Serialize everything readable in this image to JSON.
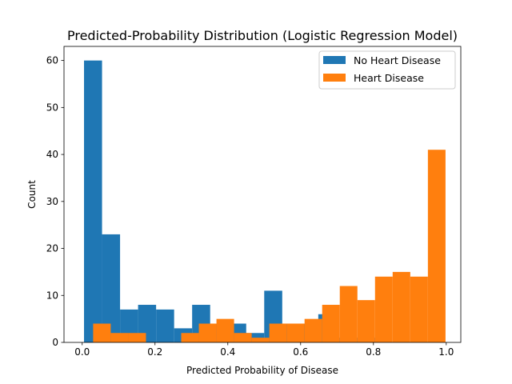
{
  "chart_data": {
    "type": "bar",
    "title": "Predicted-Probability Distribution (Logistic Regression Model)",
    "xlabel": "Predicted Probability of Disease",
    "ylabel": "Count",
    "xlim": [
      -0.05,
      1.04
    ],
    "ylim": [
      0,
      63
    ],
    "xticks": [
      0.0,
      0.2,
      0.4,
      0.6,
      0.8,
      1.0
    ],
    "xtick_labels": [
      "0.0",
      "0.2",
      "0.4",
      "0.6",
      "0.8",
      "1.0"
    ],
    "yticks": [
      0,
      10,
      20,
      30,
      40,
      50,
      60
    ],
    "ytick_labels": [
      "0",
      "10",
      "20",
      "30",
      "40",
      "50",
      "60"
    ],
    "legend_position": "top-right",
    "grid": false,
    "series": [
      {
        "name": "No Heart Disease",
        "color": "#1f77b4",
        "bin_edges": [
          0.005,
          0.0545,
          0.104,
          0.1535,
          0.203,
          0.2525,
          0.302,
          0.3515,
          0.401,
          0.4505,
          0.5,
          0.5495,
          0.599,
          0.6485,
          0.698,
          0.7475,
          0.797,
          0.8465,
          0.896,
          0.9455,
          0.995
        ],
        "counts": [
          60,
          23,
          7,
          8,
          7,
          3,
          8,
          4,
          4,
          2,
          11,
          4,
          4,
          6,
          1,
          1,
          1,
          0,
          0,
          0
        ]
      },
      {
        "name": "Heart Disease",
        "color": "#ff7f0e",
        "bin_edges": [
          0.03,
          0.0784,
          0.1268,
          0.1752,
          0.2236,
          0.272,
          0.3204,
          0.3688,
          0.4172,
          0.4656,
          0.514,
          0.5624,
          0.6108,
          0.6592,
          0.7076,
          0.756,
          0.8044,
          0.8528,
          0.9012,
          0.9496,
          0.998
        ],
        "counts": [
          4,
          2,
          2,
          0,
          0,
          2,
          4,
          5,
          2,
          1,
          4,
          4,
          5,
          8,
          12,
          9,
          14,
          15,
          14,
          41
        ]
      }
    ]
  }
}
